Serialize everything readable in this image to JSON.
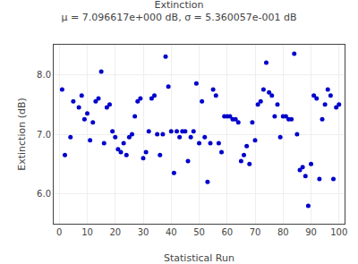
{
  "chart_data": {
    "type": "scatter",
    "title": "Extinction",
    "subtitle": "μ = 7.096617e+000 dB, σ = 5.360057e-001 dB",
    "x_label": "Statistical Run",
    "y_label": "Extinction (dB)",
    "xlim": [
      -2,
      102
    ],
    "ylim": [
      5.5,
      8.5
    ],
    "xticks": [
      0,
      10,
      20,
      30,
      40,
      50,
      60,
      70,
      80,
      90,
      100
    ],
    "yticks": [
      {
        "value": 6.0,
        "label": "6.0"
      },
      {
        "value": 7.0,
        "label": "7.0"
      },
      {
        "value": 8.0,
        "label": "8.0"
      }
    ],
    "grid": true,
    "color": "#0000cc",
    "x": [
      1,
      2,
      4,
      5,
      7,
      8,
      9,
      10,
      11,
      12,
      13,
      14,
      15,
      16,
      17,
      18,
      19,
      20,
      21,
      22,
      23,
      24,
      25,
      26,
      27,
      28,
      29,
      30,
      31,
      32,
      33,
      34,
      35,
      36,
      37,
      38,
      39,
      40,
      41,
      42,
      43,
      44,
      45,
      46,
      47,
      48,
      49,
      50,
      51,
      52,
      53,
      54,
      55,
      56,
      57,
      58,
      59,
      60,
      61,
      62,
      63,
      64,
      65,
      66,
      67,
      68,
      69,
      70,
      71,
      72,
      73,
      74,
      75,
      76,
      77,
      78,
      79,
      80,
      81,
      82,
      83,
      84,
      85,
      86,
      87,
      88,
      89,
      90,
      91,
      92,
      93,
      94,
      95,
      96,
      97,
      98,
      99,
      100
    ],
    "values": [
      7.75,
      6.65,
      6.95,
      7.55,
      7.45,
      7.65,
      7.25,
      7.35,
      6.9,
      7.2,
      7.55,
      7.6,
      8.05,
      6.85,
      7.45,
      7.5,
      7.05,
      6.95,
      6.75,
      6.7,
      6.85,
      6.65,
      6.95,
      7.0,
      7.3,
      7.55,
      7.6,
      6.6,
      6.7,
      7.05,
      7.6,
      7.65,
      7.0,
      6.65,
      7.0,
      8.3,
      7.8,
      7.05,
      6.35,
      7.05,
      6.95,
      7.05,
      7.05,
      6.55,
      6.95,
      7.05,
      7.85,
      6.85,
      7.55,
      6.95,
      6.2,
      6.85,
      7.75,
      7.65,
      6.85,
      6.7,
      7.3,
      7.3,
      7.3,
      7.25,
      7.25,
      7.2,
      6.55,
      6.65,
      6.8,
      6.5,
      7.2,
      6.9,
      7.5,
      7.55,
      7.75,
      8.2,
      7.7,
      7.65,
      7.3,
      7.5,
      6.95,
      7.3,
      7.3,
      7.25,
      7.25,
      8.35,
      7.0,
      6.4,
      6.45,
      6.3,
      5.8,
      6.5,
      7.65,
      7.6,
      6.25,
      7.25,
      7.5,
      7.75,
      7.65,
      6.25,
      7.45,
      7.5
    ]
  }
}
